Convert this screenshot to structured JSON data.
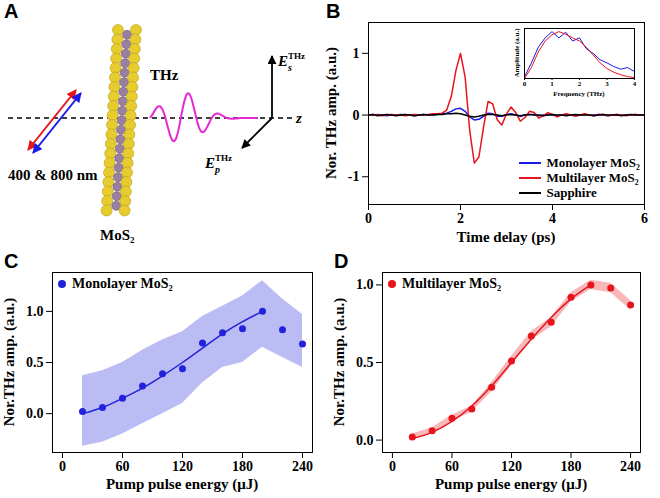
{
  "diagram": {
    "panel": "A",
    "beam_label": "400 & 800 nm",
    "sample_label": "MoS₂",
    "wave_label": "THz",
    "field_labels": [
      {
        "base": "E",
        "sub": "s",
        "sup": "THz"
      },
      {
        "base": "E",
        "sub": "p",
        "sup": "THz"
      }
    ],
    "axis_label": "z"
  },
  "chart_data": [
    {
      "panel": "B",
      "type": "line",
      "xlabel": "Time delay (ps)",
      "ylabel": "Nor. THz amp. (a.u.)",
      "x": [
        0,
        0.1,
        0.2,
        0.3,
        0.4,
        0.5,
        0.6,
        0.7,
        0.8,
        0.9,
        1,
        1.1,
        1.2,
        1.3,
        1.4,
        1.5,
        1.6,
        1.7,
        1.8,
        1.9,
        2,
        2.1,
        2.2,
        2.3,
        2.4,
        2.5,
        2.6,
        2.7,
        2.8,
        2.9,
        3,
        3.1,
        3.2,
        3.3,
        3.4,
        3.5,
        3.6,
        3.7,
        3.8,
        3.9,
        4,
        4.1,
        4.2,
        4.3,
        4.4,
        4.5,
        4.6,
        4.7,
        4.8,
        4.9,
        5,
        5.1,
        5.2,
        5.3,
        5.4,
        5.5,
        5.6,
        5.7,
        5.8,
        5.9,
        6
      ],
      "xlim": [
        0,
        6
      ],
      "xticks": [
        0,
        2,
        4,
        6
      ],
      "ylim": [
        -1.45,
        1.5
      ],
      "yticks": [
        -1,
        0,
        1
      ],
      "legend": "bottom-right",
      "series": [
        {
          "name": "Monolayer MoS₂",
          "color": "#1a1ae6",
          "values": [
            0,
            0,
            0.01,
            0,
            -0.01,
            0,
            0,
            0.01,
            0,
            0,
            -0.01,
            0,
            0.01,
            0,
            0.01,
            0.01,
            0.02,
            0.03,
            0.06,
            0.1,
            0.11,
            0.06,
            -0.03,
            -0.08,
            -0.07,
            -0.02,
            0.03,
            0.02,
            -0.02,
            -0.02,
            0.01,
            0.02,
            0,
            -0.02,
            0,
            0.01,
            0.01,
            -0.01,
            0,
            0.01,
            0,
            -0.01,
            0,
            0.01,
            0,
            -0.01,
            0,
            0.01,
            0,
            0,
            0.01,
            0,
            -0.01,
            0,
            0.01,
            0,
            0,
            0,
            0.01,
            0,
            0
          ]
        },
        {
          "name": "Multilayer MoS₂",
          "color": "#e8141c",
          "values": [
            0,
            0.01,
            0,
            -0.01,
            0,
            0.01,
            0,
            0,
            -0.01,
            0,
            0.01,
            0,
            0,
            0.01,
            0.02,
            0.02,
            0.03,
            0.08,
            0.3,
            0.72,
            1.0,
            0.62,
            -0.25,
            -0.78,
            -0.68,
            -0.2,
            0.22,
            0.18,
            -0.08,
            -0.16,
            0.02,
            0.13,
            0.04,
            -0.1,
            -0.04,
            0.06,
            0.04,
            -0.05,
            -0.01,
            0.04,
            0.01,
            -0.03,
            0,
            0.02,
            0,
            -0.02,
            0,
            0.02,
            0,
            -0.01,
            0.01,
            0.01,
            -0.01,
            0,
            0.01,
            0,
            -0.01,
            0,
            0.01,
            0,
            0
          ]
        },
        {
          "name": "Sapphire",
          "color": "#000000",
          "values": [
            0,
            0.01,
            -0.01,
            0,
            0.01,
            0,
            -0.01,
            0,
            0.01,
            0,
            -0.01,
            0,
            0.01,
            0,
            0,
            0.01,
            0.01,
            0.02,
            0.02,
            0.03,
            0.02,
            0,
            -0.02,
            -0.03,
            -0.02,
            0,
            0.01,
            0.01,
            0,
            -0.01,
            0,
            0.01,
            0,
            -0.01,
            0,
            0.01,
            0,
            0,
            -0.01,
            0,
            0.01,
            0,
            0,
            -0.01,
            0,
            0.01,
            0,
            0,
            0,
            -0.01,
            0,
            0.01,
            0,
            0,
            0,
            -0.01,
            0,
            0.01,
            0,
            0,
            0
          ]
        }
      ],
      "inset": {
        "type": "line",
        "xlabel": "Frequency (THz)",
        "ylabel": "Amplitude (a.u.)",
        "x": [
          0,
          0.25,
          0.5,
          0.75,
          1,
          1.25,
          1.5,
          1.75,
          2,
          2.25,
          2.5,
          2.75,
          3,
          3.25,
          3.5,
          3.75,
          4
        ],
        "xlim": [
          0,
          4
        ],
        "xticks": [
          0,
          1,
          2,
          3,
          4
        ],
        "ylim": [
          0,
          1.6
        ],
        "tick_labels": "x",
        "series": [
          {
            "color": "#1a1ae6",
            "values": [
              0.05,
              0.5,
              1.0,
              1.3,
              1.5,
              1.3,
              1.48,
              1.2,
              1.3,
              0.95,
              0.8,
              0.6,
              0.5,
              0.38,
              0.3,
              0.35,
              0.22
            ]
          },
          {
            "color": "#e8141c",
            "values": [
              0,
              0.35,
              0.85,
              1.2,
              1.4,
              1.5,
              1.42,
              1.3,
              1.2,
              1.0,
              0.75,
              0.5,
              0.32,
              0.2,
              0.12,
              0.06,
              0.03
            ]
          }
        ]
      }
    },
    {
      "panel": "C",
      "type": "scatter",
      "xlabel": "Pump pulse energy (μJ)",
      "ylabel": "Nor.THz amp. (a.u.)",
      "x": [
        20,
        40,
        60,
        80,
        100,
        120,
        140,
        160,
        180,
        200,
        220,
        240
      ],
      "xlim": [
        -10,
        250
      ],
      "xticks": [
        0,
        60,
        120,
        180,
        240
      ],
      "ylim": [
        -0.38,
        1.38
      ],
      "yticks": [
        {
          "value": 0,
          "label": "0.0"
        },
        0.5,
        {
          "value": 1,
          "label": "1.0"
        }
      ],
      "legend": "top-left",
      "series": [
        {
          "name": "Monolayer MoS₂",
          "color": "#2222dd",
          "marker": "circle",
          "values": [
            0.02,
            0.06,
            0.15,
            0.27,
            0.39,
            0.44,
            0.69,
            0.79,
            0.83,
            1.0,
            0.82,
            0.68
          ],
          "band_lower": [
            -0.32,
            -0.28,
            -0.2,
            -0.1,
            0.0,
            0.1,
            0.3,
            0.45,
            0.5,
            0.65,
            0.55,
            0.45
          ],
          "band_upper": [
            0.37,
            0.42,
            0.5,
            0.62,
            0.72,
            0.8,
            0.95,
            1.05,
            1.15,
            1.3,
            1.12,
            0.97
          ],
          "fit_x": [
            20,
            40,
            60,
            80,
            100,
            120,
            140,
            160,
            180,
            200
          ],
          "fit_values": [
            0.0,
            0.06,
            0.15,
            0.25,
            0.37,
            0.5,
            0.64,
            0.78,
            0.9,
            1.0
          ]
        }
      ]
    },
    {
      "panel": "D",
      "type": "scatter",
      "xlabel": "Pump pulse energy (μJ)",
      "ylabel": "Nor.THz amp. (a.u.)",
      "x": [
        20,
        40,
        60,
        80,
        100,
        120,
        140,
        160,
        180,
        200,
        220,
        240
      ],
      "xlim": [
        -10,
        250
      ],
      "xticks": [
        0,
        60,
        120,
        180,
        240
      ],
      "ylim": [
        -0.08,
        1.08
      ],
      "yticks": [
        {
          "value": 0,
          "label": "0.0"
        },
        0.5,
        {
          "value": 1,
          "label": "1.0"
        }
      ],
      "legend": "top-left",
      "series": [
        {
          "name": "Multilayer MoS₂",
          "color": "#e8141c",
          "marker": "circle",
          "values": [
            0.02,
            0.06,
            0.14,
            0.2,
            0.34,
            0.51,
            0.67,
            0.76,
            0.92,
            1.0,
            0.98,
            0.87
          ],
          "band_lower": [
            0.0,
            0.04,
            0.12,
            0.18,
            0.31,
            0.48,
            0.64,
            0.73,
            0.89,
            0.97,
            0.95,
            0.84
          ],
          "band_upper": [
            0.04,
            0.08,
            0.16,
            0.22,
            0.37,
            0.54,
            0.7,
            0.79,
            0.95,
            1.03,
            1.01,
            0.9
          ],
          "fit_x": [
            20,
            40,
            60,
            80,
            100,
            120,
            140,
            160,
            180,
            200
          ],
          "fit_values": [
            0.01,
            0.05,
            0.12,
            0.22,
            0.35,
            0.5,
            0.65,
            0.79,
            0.91,
            1.0
          ]
        }
      ]
    }
  ]
}
